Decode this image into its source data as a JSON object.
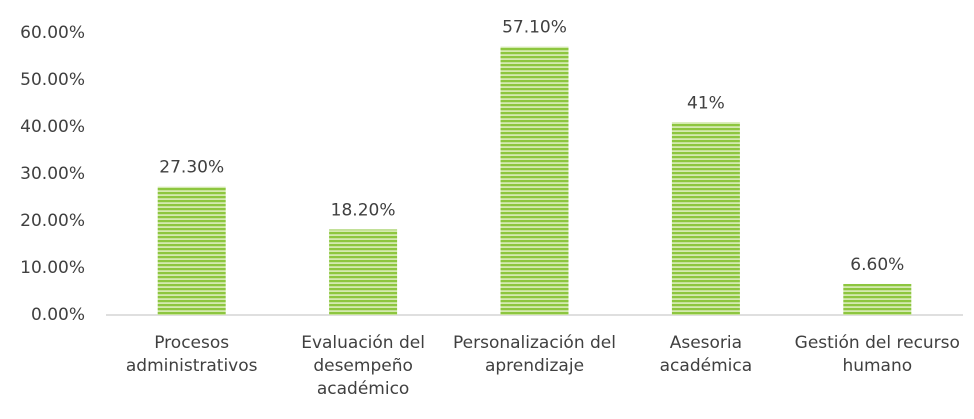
{
  "chart_data": {
    "type": "bar",
    "categories": [
      "Procesos administrativos",
      "Evaluación del desempeño académico",
      "Personalización del aprendizaje",
      "Asesoria académica",
      "Gestión del recurso humano"
    ],
    "values": [
      27.3,
      18.2,
      57.1,
      41,
      6.6
    ],
    "value_labels": [
      "27.30%",
      "18.20%",
      "57.10%",
      "41%",
      "6.60%"
    ],
    "color": "#8dc63f",
    "ylim": [
      0,
      60
    ],
    "yticks": [
      {
        "value": 0,
        "label": "0.00%"
      },
      {
        "value": 10,
        "label": "10.00%"
      },
      {
        "value": 20,
        "label": "20.00%"
      },
      {
        "value": 30,
        "label": "30.00%"
      },
      {
        "value": 40,
        "label": "40.00%"
      },
      {
        "value": 50,
        "label": "50.00%"
      },
      {
        "value": 60,
        "label": "60.00%"
      }
    ],
    "grid": false
  }
}
